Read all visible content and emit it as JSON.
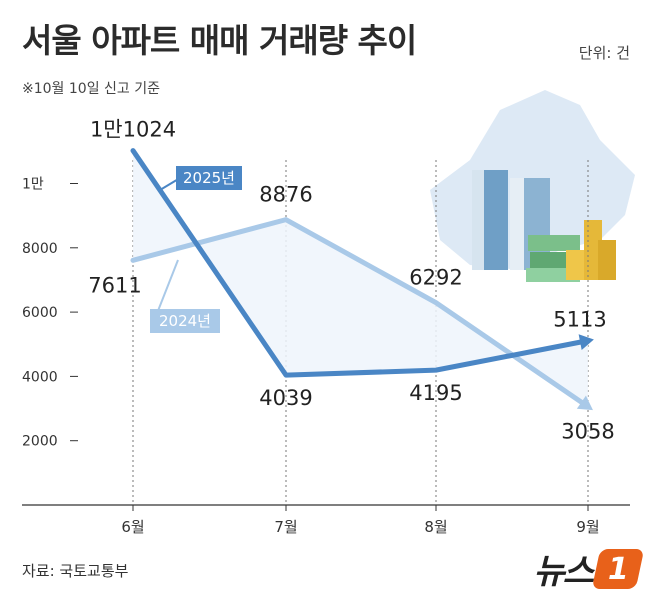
{
  "header": {
    "title": "서울 아파트 매매 거래량 추이",
    "unit": "단위: 건",
    "note": "※10월 10일 신고 기준"
  },
  "footer": {
    "source": "자료: 국토교통부",
    "logo_text": "뉴스",
    "logo_badge": "1"
  },
  "colors": {
    "series_2025": "#4a86c5",
    "series_2024": "#a9c9e8",
    "fill_between": "#eef4fb"
  },
  "chart_data": {
    "type": "line",
    "categories": [
      "6월",
      "7월",
      "8월",
      "9월"
    ],
    "ylim": [
      0,
      12000
    ],
    "y_ticks": [
      {
        "value": 2000,
        "label": "2000"
      },
      {
        "value": 4000,
        "label": "4000"
      },
      {
        "value": 6000,
        "label": "6000"
      },
      {
        "value": 8000,
        "label": "8000"
      },
      {
        "value": 10000,
        "label": "1만"
      }
    ],
    "series": [
      {
        "name": "2025년",
        "values": [
          11024,
          4039,
          4195,
          5113
        ],
        "labels": [
          "1만1024",
          "4039",
          "4195",
          "5113"
        ]
      },
      {
        "name": "2024년",
        "values": [
          7611,
          8876,
          6292,
          3058
        ],
        "labels": [
          "7611",
          "8876",
          "6292",
          "3058"
        ]
      }
    ]
  }
}
